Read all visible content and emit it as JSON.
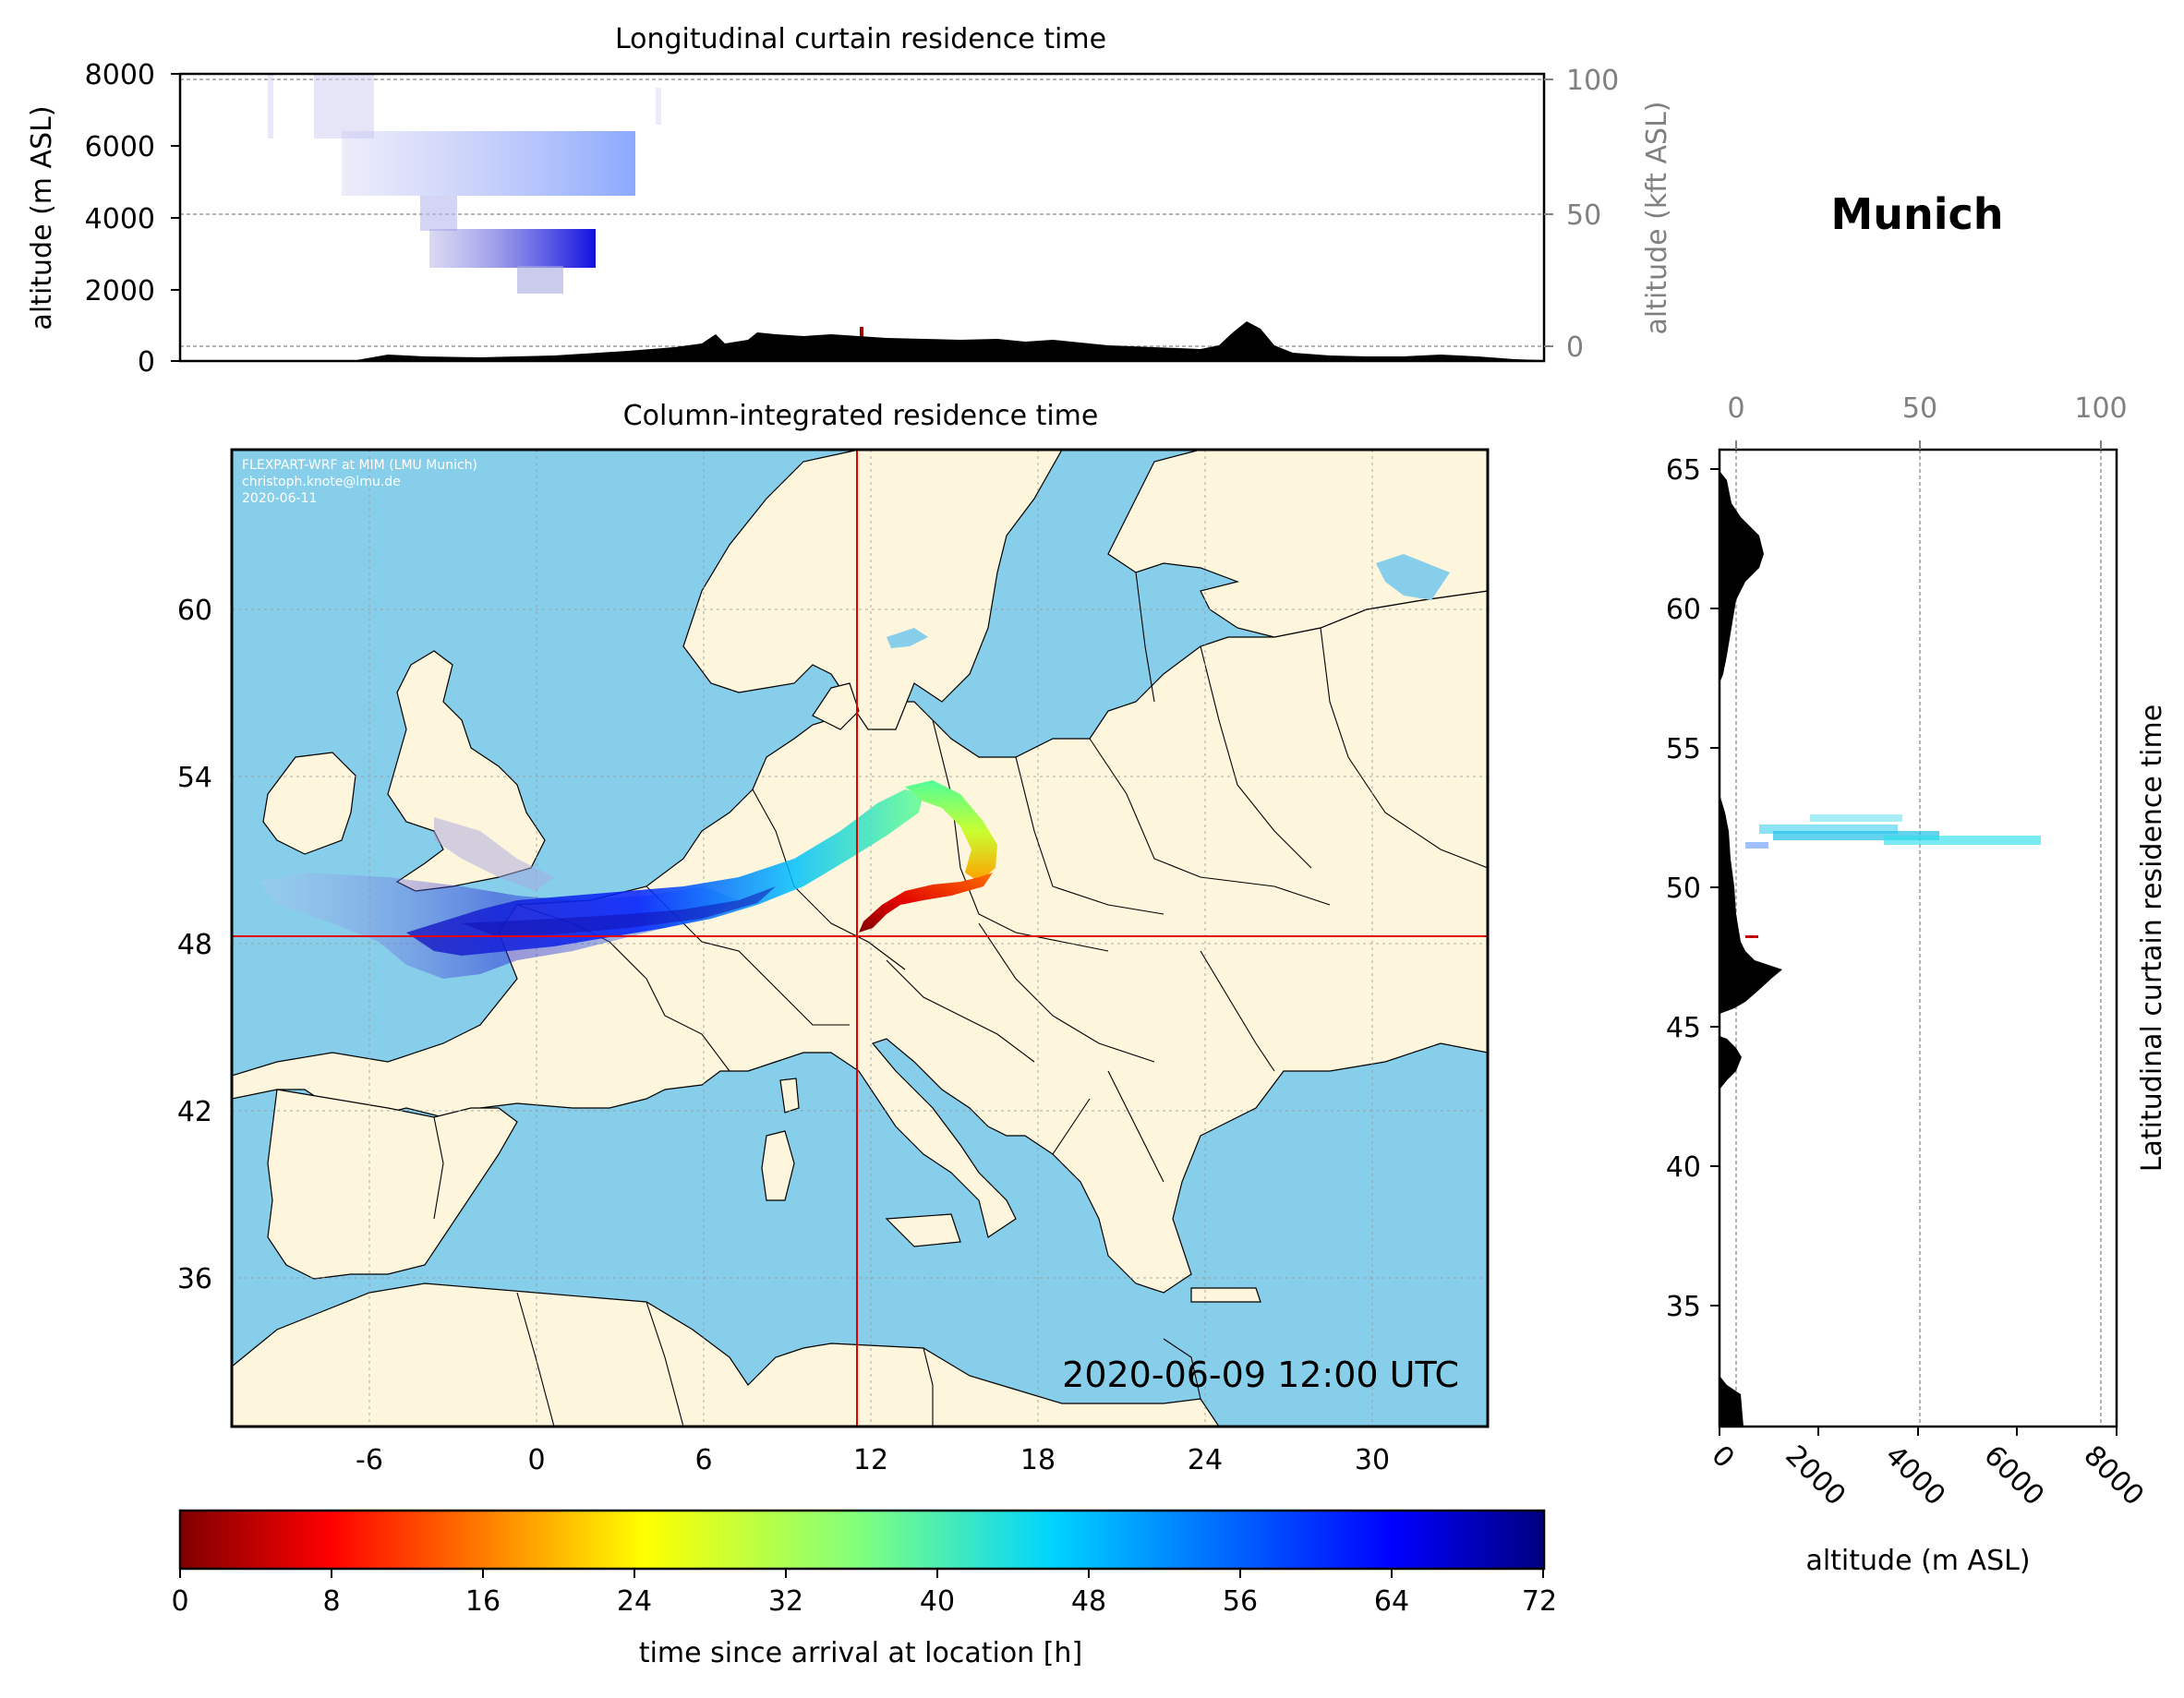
{
  "location_title": "Munich",
  "colors": {
    "ocean": "#87ceeb",
    "land": "#fdf5dc",
    "border": "#000000",
    "terrain": "#000000",
    "crosshair": "#e00000",
    "right_axis_text": "#808080"
  },
  "top_panel": {
    "title": "Longitudinal curtain residence time",
    "ylabel_left": "altitude (m ASL)",
    "ylabel_right": "altitude (kft ASL)",
    "left_ticks": [
      "0",
      "2000",
      "4000",
      "6000",
      "8000"
    ],
    "right_ticks": [
      "0",
      "50",
      "100"
    ]
  },
  "map_panel": {
    "title": "Column-integrated residence time",
    "credit_lines": [
      "FLEXPART-WRF at MIM (LMU Munich)",
      "christoph.knote@lmu.de",
      "2020-06-11"
    ],
    "timestamp": "2020-06-09 12:00 UTC",
    "lon_ticks": [
      "-6",
      "0",
      "6",
      "12",
      "18",
      "24",
      "30"
    ],
    "lat_ticks": [
      "60",
      "54",
      "48",
      "42",
      "36"
    ],
    "receptor": {
      "lon": 11.6,
      "lat": 48.1
    }
  },
  "right_panel": {
    "ylabel_right": "Latitudinal curtain residence time",
    "xlabel": "altitude (m ASL)",
    "lat_ticks": [
      "65",
      "60",
      "55",
      "50",
      "45",
      "40",
      "35"
    ],
    "bottom_ticks": [
      "0",
      "2000",
      "4000",
      "6000",
      "8000"
    ],
    "top_ticks": [
      "0",
      "50",
      "100"
    ]
  },
  "colorbar": {
    "label": "time since arrival at location [h]",
    "ticks": [
      "0",
      "8",
      "16",
      "24",
      "32",
      "40",
      "48",
      "56",
      "64",
      "72"
    ],
    "colormap": "jet_r",
    "range": [
      0,
      72
    ]
  }
}
